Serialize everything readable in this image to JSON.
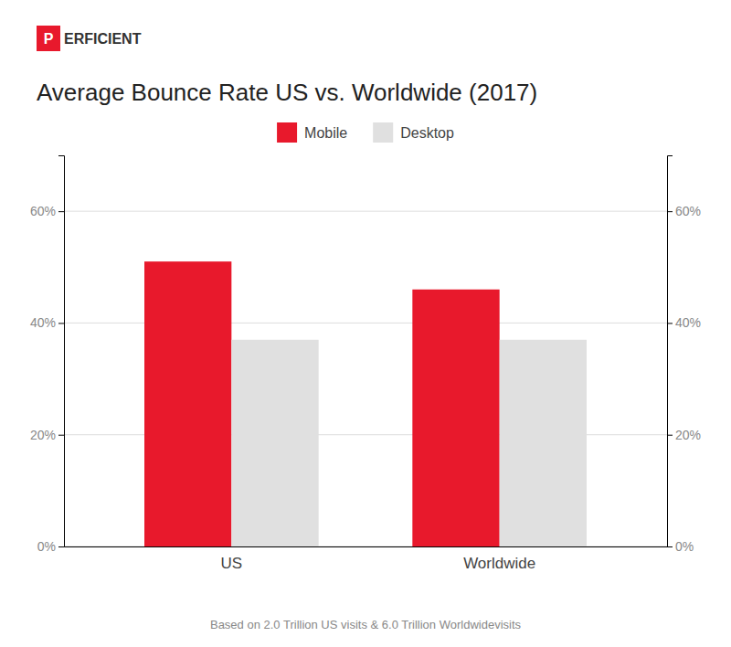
{
  "chart_data": {
    "type": "bar",
    "title": "Average Bounce Rate US vs. Worldwide (2017)",
    "categories": [
      "US",
      "Worldwide"
    ],
    "series": [
      {
        "name": "Mobile",
        "color": "#e8192c",
        "values": [
          0.51,
          0.46
        ]
      },
      {
        "name": "Desktop",
        "color": "#e0e0e0",
        "values": [
          0.37,
          0.37
        ]
      }
    ],
    "ylim": [
      0,
      0.7
    ],
    "yticks": [
      {
        "value": 0.0,
        "label": "0%"
      },
      {
        "value": 0.2,
        "label": "20%"
      },
      {
        "value": 0.4,
        "label": "40%"
      },
      {
        "value": 0.6,
        "label": "60%"
      }
    ],
    "y2lim": [
      0,
      0.7
    ],
    "y2ticks": [
      {
        "value": 0.0,
        "label": "0%"
      },
      {
        "value": 0.2,
        "label": "20%"
      },
      {
        "value": 0.4,
        "label": "40%"
      },
      {
        "value": 0.6,
        "label": "60%"
      }
    ],
    "grid": true,
    "legend": "top",
    "annotations": [
      "Based on 2.0 Trillion US visits & 6.0 Trillion Worldwidevisits"
    ],
    "logo": {
      "text": [
        "P",
        "ERFICIENT"
      ],
      "color": "#e8192c"
    }
  }
}
